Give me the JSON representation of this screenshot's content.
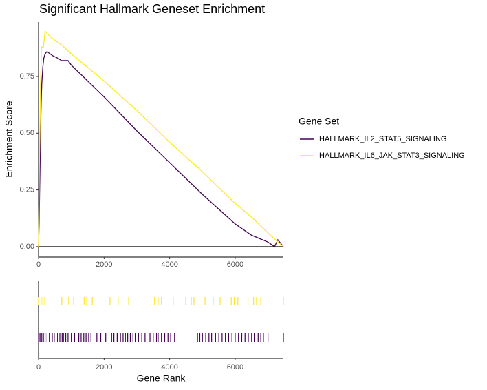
{
  "chart_data": {
    "type": "line",
    "title": "Significant Hallmark Geneset Enrichment",
    "y_label": "Enrichment Score",
    "x_label": "Gene Rank",
    "legend_title": "Gene Set",
    "legend_position": "right",
    "xlim": [
      0,
      7470
    ],
    "ylim": [
      -0.046,
      0.99
    ],
    "xticks": [
      0,
      2000,
      4000,
      6000
    ],
    "yticks": [
      {
        "value": 0,
        "label": "0.00"
      },
      0.25,
      {
        "value": 0.5,
        "label": "0.50"
      },
      0.75
    ],
    "series": [
      {
        "name": "HALLMARK_IL2_STAT5_SIGNALING",
        "color": "#440154",
        "x": [
          0,
          20,
          40,
          60,
          80,
          100,
          130,
          160,
          200,
          260,
          350,
          450,
          600,
          700,
          900,
          1000,
          2000,
          3000,
          4000,
          5000,
          6000,
          6500,
          7000,
          7200,
          7300,
          7470
        ],
        "values": [
          0,
          0.12,
          0.3,
          0.5,
          0.63,
          0.72,
          0.79,
          0.83,
          0.85,
          0.86,
          0.85,
          0.84,
          0.83,
          0.82,
          0.82,
          0.8,
          0.66,
          0.51,
          0.37,
          0.23,
          0.1,
          0.05,
          0.02,
          0,
          0.03,
          0
        ],
        "hits": [
          0,
          20,
          60,
          100,
          150,
          200,
          260,
          330,
          420,
          480,
          580,
          650,
          720,
          760,
          830,
          900,
          1000,
          1100,
          1230,
          1300,
          1380,
          1450,
          1530,
          1600,
          1780,
          1900,
          2050,
          2230,
          2300,
          2400,
          2500,
          2580,
          2650,
          2720,
          2800,
          2880,
          2950,
          3050,
          3150,
          3250,
          3400,
          3500,
          3600,
          3650,
          3750,
          3850,
          3950,
          4030,
          4150,
          4850,
          4920,
          5000,
          5100,
          5200,
          5280,
          5400,
          5500,
          5600,
          5700,
          5800,
          5900,
          6000,
          6100,
          6200,
          6300,
          6400,
          6500,
          6580,
          6700,
          6780,
          6860,
          7000,
          7470
        ]
      },
      {
        "name": "HALLMARK_IL6_JAK_STAT3_SIGNALING",
        "color": "#FDE725",
        "x": [
          0,
          30,
          60,
          90,
          150,
          200,
          400,
          700,
          1000,
          2000,
          3000,
          4000,
          5000,
          6000,
          6500,
          7000,
          7470
        ],
        "values": [
          0,
          0.4,
          0.7,
          0.88,
          0.88,
          0.95,
          0.92,
          0.89,
          0.85,
          0.73,
          0.6,
          0.46,
          0.33,
          0.19,
          0.13,
          0.06,
          0
        ],
        "hits": [
          0,
          80,
          130,
          190,
          710,
          920,
          1070,
          1390,
          1470,
          1640,
          2180,
          2430,
          2750,
          3540,
          3650,
          3750,
          4110,
          4490,
          4660,
          4740,
          5080,
          5330,
          5540,
          5880,
          5970,
          6080,
          6390,
          6560,
          6650,
          6780,
          7470
        ]
      }
    ]
  }
}
